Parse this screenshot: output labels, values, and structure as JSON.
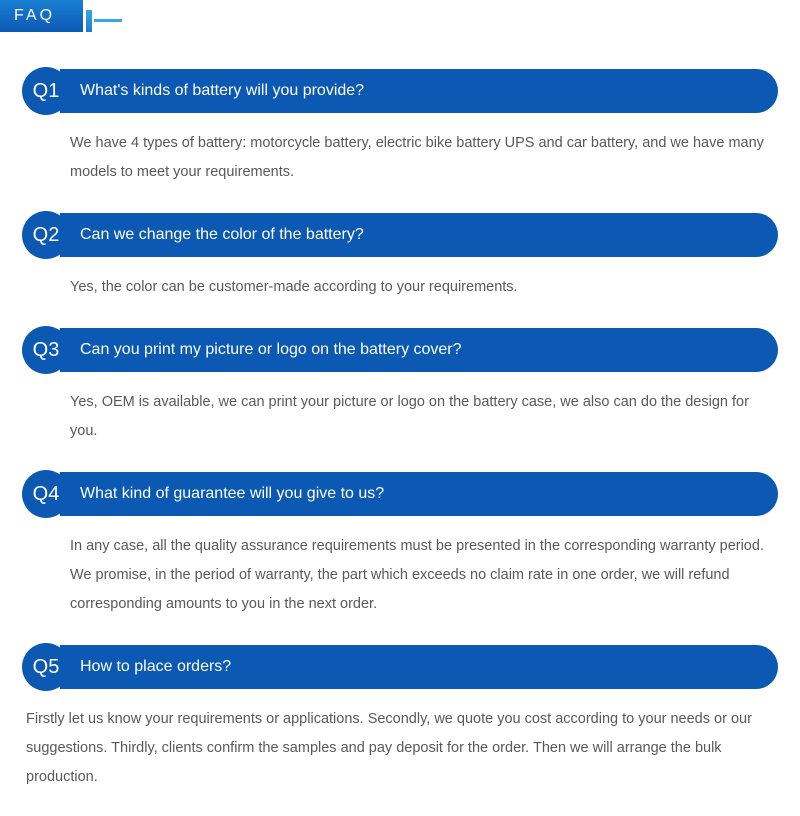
{
  "header": {
    "title": "FAQ"
  },
  "colors": {
    "brand_blue": "#0b59b3",
    "brand_blue_light": "#1a7fd4",
    "accent": "#3aa5e8",
    "answer_text": "#595959",
    "background": "#ffffff"
  },
  "faq": {
    "items": [
      {
        "badge": "Q1",
        "question": "What's kinds of battery will you provide?",
        "answer": "We have 4 types of battery: motorcycle battery, electric bike battery UPS and car battery, and we have many models to meet your requirements."
      },
      {
        "badge": "Q2",
        "question": "Can we change the color of the battery?",
        "answer": "Yes, the color can be customer-made according to your requirements."
      },
      {
        "badge": "Q3",
        "question": "Can you print my picture or logo on the battery cover?",
        "answer": "Yes, OEM is available, we can print your picture or logo on the battery case, we also can do the design for you."
      },
      {
        "badge": "Q4",
        "question": "What kind of guarantee will you give to us?",
        "answer": "In any case, all the quality assurance requirements must be presented in the corresponding warranty period. We promise, in the period of warranty, the part which exceeds no claim rate in one order, we will refund corresponding amounts to you in the next order."
      },
      {
        "badge": "Q5",
        "question": "How to place orders?",
        "answer": "Firstly let us know your requirements or applications. Secondly, we quote you cost according to your needs or our suggestions. Thirdly, clients confirm the samples and pay deposit for the order. Then we will arrange the bulk production."
      }
    ]
  }
}
